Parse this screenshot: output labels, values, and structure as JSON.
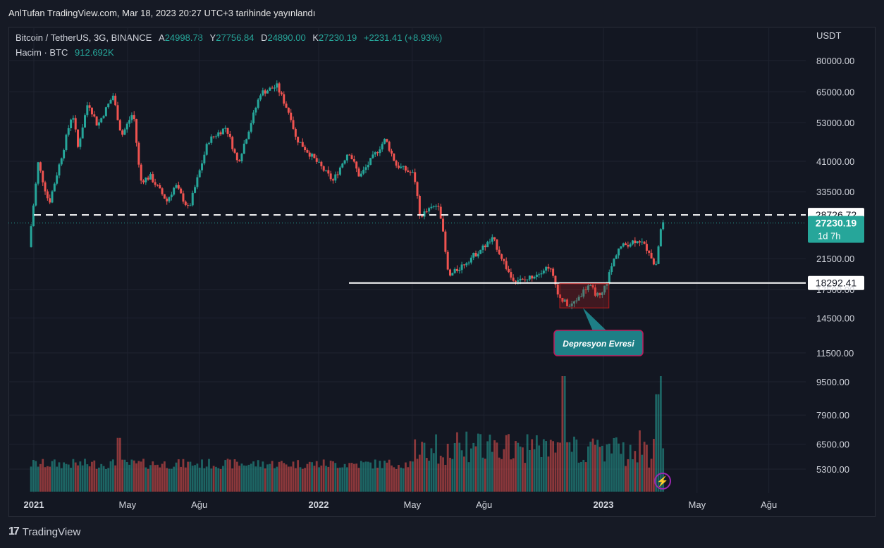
{
  "header": {
    "published": "AnlTufan TradingView.com, Mar 18, 2023 20:27 UTC+3 tarihinde yayınlandı"
  },
  "symbol": {
    "title": "Bitcoin / TetherUS, 3G, BINANCE",
    "open_label": "A",
    "open": "24998.78",
    "high_label": "Y",
    "high": "27756.84",
    "low_label": "D",
    "low": "24890.00",
    "close_label": "K",
    "close": "27230.19",
    "change": "+2231.41 (+8.93%)"
  },
  "volume_legend": {
    "label": "Hacim · BTC",
    "value": "912.692K"
  },
  "currency": "USDT",
  "footer": {
    "brand": "TradingView",
    "logo_mark": "17"
  },
  "colors": {
    "up": "#26a69a",
    "down": "#ef5350",
    "background": "#131722",
    "grid": "#1f2330"
  },
  "chart_data": {
    "type": "candlestick",
    "price_axis": {
      "scale": "log",
      "ticks": [
        "80000.00",
        "65000.00",
        "53000.00",
        "41000.00",
        "33500.00",
        "21500.00",
        "17500.00",
        "14500.00",
        "11500.00"
      ]
    },
    "volume_axis": {
      "ticks": [
        "9500.00",
        "7900.00",
        "6500.00",
        "5300.00"
      ]
    },
    "x_ticks": [
      "2021",
      "May",
      "Ağu",
      "2022",
      "May",
      "Ağu",
      "2023",
      "May",
      "Ağu"
    ],
    "x_tick_dates": [
      "2021-01-01",
      "2021-05-01",
      "2021-08-01",
      "2022-01-01",
      "2022-05-01",
      "2022-08-01",
      "2023-01-01",
      "2023-05-01",
      "2023-08-01"
    ],
    "series_points": [
      [
        "2020-12-27",
        23200
      ],
      [
        "2021-01-08",
        40500
      ],
      [
        "2021-01-22",
        31000
      ],
      [
        "2021-02-10",
        45000
      ],
      [
        "2021-02-21",
        57000
      ],
      [
        "2021-02-28",
        45000
      ],
      [
        "2021-03-13",
        61000
      ],
      [
        "2021-03-25",
        52000
      ],
      [
        "2021-04-14",
        63500
      ],
      [
        "2021-04-25",
        48500
      ],
      [
        "2021-05-10",
        57000
      ],
      [
        "2021-05-19",
        36000
      ],
      [
        "2021-06-01",
        37000
      ],
      [
        "2021-06-22",
        31500
      ],
      [
        "2021-07-03",
        35000
      ],
      [
        "2021-07-20",
        29800
      ],
      [
        "2021-08-14",
        47000
      ],
      [
        "2021-09-06",
        51500
      ],
      [
        "2021-09-21",
        40500
      ],
      [
        "2021-10-20",
        64500
      ],
      [
        "2021-11-10",
        67500
      ],
      [
        "2021-11-28",
        55000
      ],
      [
        "2021-12-04",
        48000
      ],
      [
        "2022-01-21",
        36000
      ],
      [
        "2022-02-10",
        44000
      ],
      [
        "2022-02-24",
        37000
      ],
      [
        "2022-03-29",
        47500
      ],
      [
        "2022-04-12",
        40000
      ],
      [
        "2022-05-05",
        37500
      ],
      [
        "2022-05-12",
        28500
      ],
      [
        "2022-06-06",
        31000
      ],
      [
        "2022-06-18",
        19000
      ],
      [
        "2022-07-10",
        21000
      ],
      [
        "2022-08-14",
        24500
      ],
      [
        "2022-09-06",
        19000
      ],
      [
        "2022-09-22",
        18500
      ],
      [
        "2022-10-25",
        20500
      ],
      [
        "2022-11-08",
        16500
      ],
      [
        "2022-11-21",
        15600
      ],
      [
        "2022-12-14",
        18000
      ],
      [
        "2022-12-30",
        16500
      ],
      [
        "2023-01-21",
        23000
      ],
      [
        "2023-02-16",
        24500
      ],
      [
        "2023-03-03",
        22500
      ],
      [
        "2023-03-10",
        20000
      ],
      [
        "2023-03-18",
        27230.19
      ]
    ],
    "volume_spikes": [
      [
        "2021-04-18",
        6800
      ],
      [
        "2022-11-09",
        9950
      ],
      [
        "2023-03-14",
        9800
      ],
      [
        "2023-03-10",
        8900
      ]
    ],
    "horizontal_levels": [
      {
        "price": 28726.72,
        "label": "28726.72",
        "style": "dashed"
      },
      {
        "price": 18292.41,
        "label": "18292.41",
        "style": "solid"
      }
    ],
    "last_price": {
      "value": "27230.19",
      "countdown": "1d 7h"
    },
    "annotation": {
      "text": "Depresyon Evresi",
      "from": "2022-11-06",
      "to": "2023-01-08",
      "low": 15500,
      "high": 18200
    }
  }
}
